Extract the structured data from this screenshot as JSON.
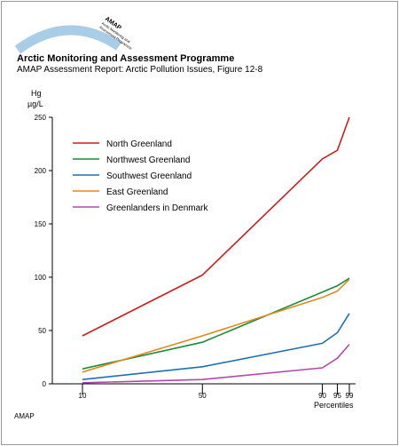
{
  "header": {
    "logo_text": [
      "AMAP",
      "Arctic Monitoring and",
      "Assessment Programme"
    ],
    "title": "Arctic Monitoring and Assessment Programme",
    "subtitle": "AMAP Assessment Report: Arctic Pollution Issues, Figure 12-8"
  },
  "footer": {
    "source": "AMAP"
  },
  "colors": {
    "north": "#d01c1c",
    "northwest": "#1e8a3c",
    "southwest": "#1f6fb0",
    "east": "#e08a1e",
    "denmark": "#b04aa8",
    "logo_arc": "#a9cde6"
  },
  "chart_data": {
    "type": "line",
    "title": "",
    "xlabel": "Percentiles",
    "ylabel_line1": "Hg",
    "ylabel_line2": "µg/L",
    "ylim": [
      0,
      250
    ],
    "y_ticks": [
      0,
      50,
      100,
      150,
      200,
      250
    ],
    "x_ticks": [
      10,
      50,
      90,
      95,
      99
    ],
    "legend_position": "top-left",
    "grid": false,
    "series": [
      {
        "name": "North Greenland",
        "color_key": "north",
        "x": [
          10,
          50,
          90,
          95,
          99
        ],
        "y": [
          45,
          102,
          211,
          219,
          250
        ]
      },
      {
        "name": "Northwest Greenland",
        "color_key": "northwest",
        "x": [
          10,
          50,
          90,
          95,
          99
        ],
        "y": [
          14,
          39,
          86,
          92,
          99
        ]
      },
      {
        "name": "Southwest Greenland",
        "color_key": "southwest",
        "x": [
          10,
          50,
          90,
          95,
          99
        ],
        "y": [
          4,
          16,
          38,
          48,
          66
        ]
      },
      {
        "name": "East Greenland",
        "color_key": "east",
        "x": [
          10,
          50,
          90,
          95,
          99
        ],
        "y": [
          11,
          45,
          81,
          87,
          98
        ]
      },
      {
        "name": "Greenlanders in Denmark",
        "color_key": "denmark",
        "x": [
          10,
          50,
          90,
          95,
          99
        ],
        "y": [
          1,
          4,
          15,
          24,
          37
        ]
      }
    ]
  }
}
